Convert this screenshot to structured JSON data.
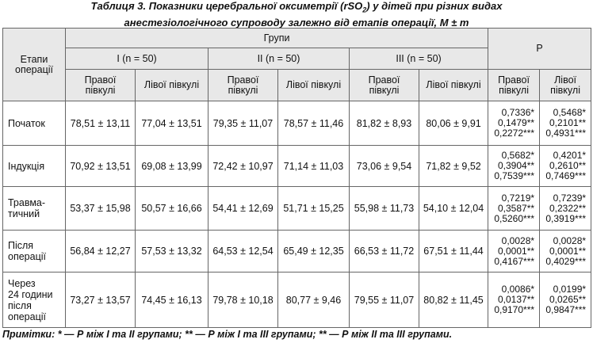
{
  "title": {
    "line1_pre": "Таблиця 3.  Показники церебральної оксиметрії (rSO",
    "line1_sub": "2",
    "line1_post": ") у дітей при різних видах",
    "line2": "анестезіологічного супроводу залежно від етапів операції, M ± m"
  },
  "table": {
    "stage_header": "Етапи операції",
    "groups_header": "Групи",
    "p_header": "P",
    "groups": [
      "I (n = 50)",
      "II (n = 50)",
      "III (n = 50)"
    ],
    "subheaders": [
      "Правої півкулі",
      "Лівої півкулі",
      "Правої півкулі",
      "Лівої півкулі",
      "Правої півкулі",
      "Лівої півкулі",
      "Правої півкулі",
      "Лівої півкулі"
    ],
    "rows": [
      {
        "stage": [
          "Початок"
        ],
        "values": [
          "78,51 ± 13,11",
          "77,04 ± 13,51",
          "79,35 ± 11,07",
          "78,57 ± 11,46",
          "81,82 ± 8,93",
          "80,06 ± 9,91"
        ],
        "p_right": [
          "0,7336*",
          "0,1479**",
          "0,2272***"
        ],
        "p_left": [
          "0,5468*",
          "0,2101**",
          "0,4931***"
        ]
      },
      {
        "stage": [
          "Індукція"
        ],
        "values": [
          "70,92 ± 13,51",
          "69,08 ± 13,99",
          "72,42 ± 10,97",
          "71,14 ± 11,03",
          "73,06 ± 9,54",
          "71,82 ± 9,52"
        ],
        "p_right": [
          "0,5682*",
          "0,3904**",
          "0,7539***"
        ],
        "p_left": [
          "0,4201*",
          "0,2610**",
          "0,7469***"
        ]
      },
      {
        "stage": [
          "Травма-",
          "тичний"
        ],
        "values": [
          "53,37 ± 15,98",
          "50,57 ± 16,66",
          "54,41 ± 12,69",
          "51,71 ± 15,25",
          "55,98 ± 11,73",
          "54,10 ± 12,04"
        ],
        "p_right": [
          "0,7219*",
          "0,3587**",
          "0,5260***"
        ],
        "p_left": [
          "0,7239*",
          "0,2322**",
          "0,3919***"
        ]
      },
      {
        "stage": [
          "Після",
          "операції"
        ],
        "values": [
          "56,84 ± 12,27",
          "57,53 ± 13,32",
          "64,53 ± 12,54",
          "65,49 ± 12,35",
          "66,53 ± 11,72",
          "67,51 ± 11,44"
        ],
        "p_right": [
          "0,0028*",
          "0,0001**",
          "0,4167***"
        ],
        "p_left": [
          "0,0028*",
          "0,0001**",
          "0,4029***"
        ]
      },
      {
        "stage": [
          "Через",
          "24 години",
          "після",
          "операції"
        ],
        "values": [
          "73,27 ± 13,57",
          "74,45 ± 16,13",
          "79,78 ± 10,18",
          "80,77 ± 9,46",
          "79,55 ± 11,07",
          "80,82 ± 11,45"
        ],
        "p_right": [
          "0,0086*",
          "0,0137**",
          "0,9170***"
        ],
        "p_left": [
          "0,0199*",
          "0,0265**",
          "0,9847***"
        ]
      }
    ]
  },
  "note": {
    "label": "Примітки:",
    "text": " * — Р між І та ІІ групами; ** — Р між І та ІІІ групами; ** — Р між ІІ та ІІІ групами."
  }
}
